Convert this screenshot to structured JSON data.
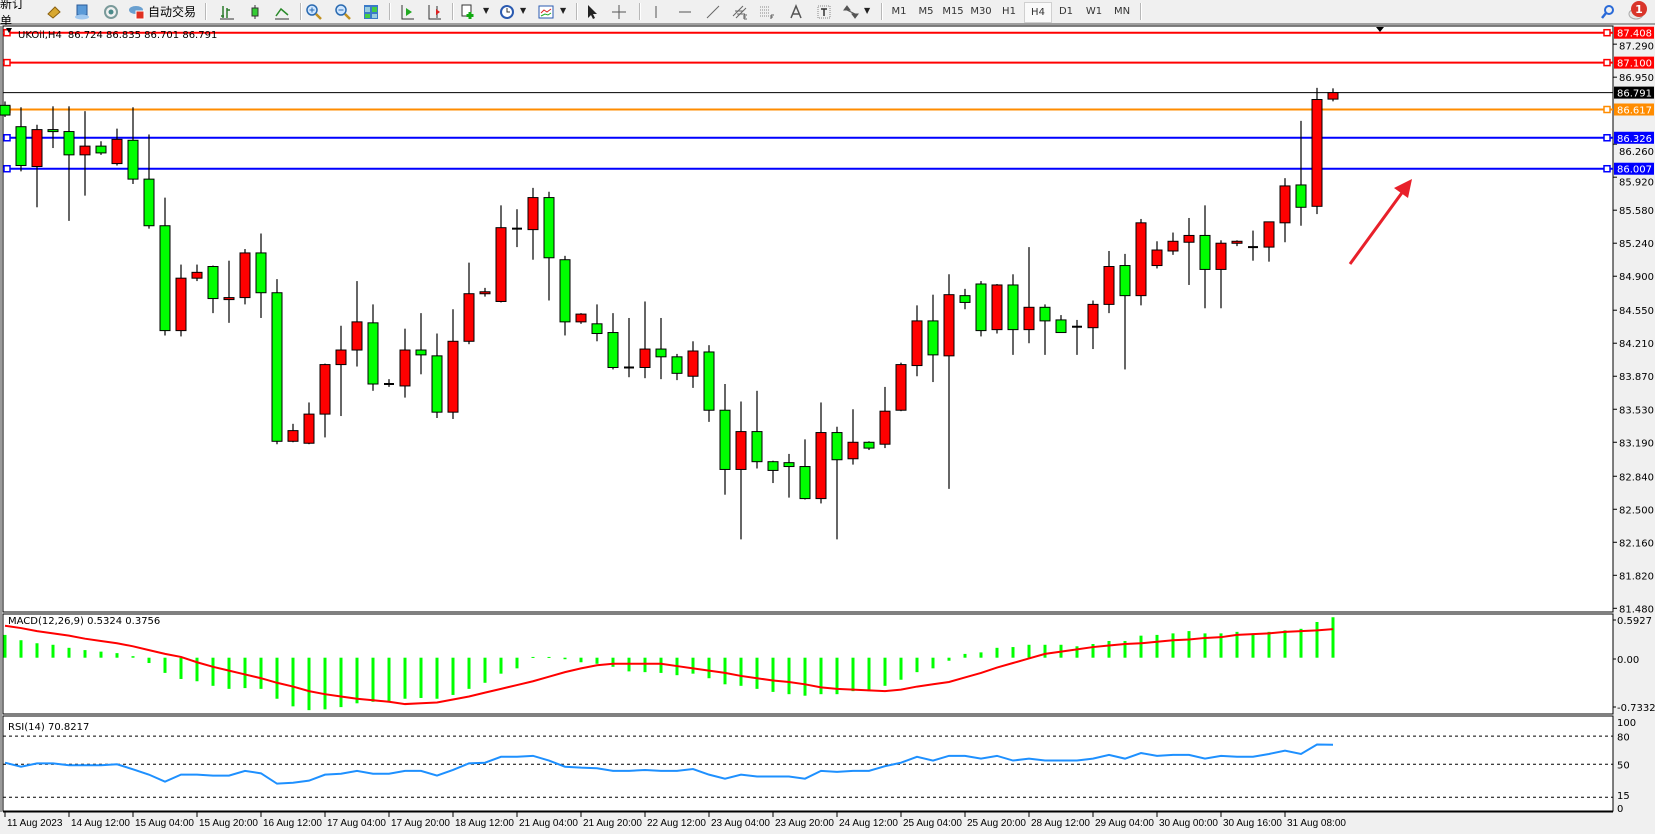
{
  "toolbar": {
    "new_order_label": "新订单",
    "auto_trading_label": "自动交易",
    "icons": [
      "market-watch-icon",
      "data-window-icon",
      "navigator-icon",
      "auto-trading-icon",
      "bar-chart-icon",
      "candlestick-icon",
      "line-chart-icon",
      "zoom-in-icon",
      "zoom-out-icon",
      "tile-windows-icon",
      "auto-scroll-icon",
      "chart-shift-icon",
      "indicators-icon",
      "periods-icon",
      "templates-icon",
      "cursor-icon",
      "crosshair-icon",
      "vertical-line-icon",
      "horizontal-line-icon",
      "trendline-icon",
      "equidistant-channel-icon",
      "fibonacci-icon",
      "text-icon",
      "text-label-icon",
      "arrows-icon",
      "search-icon",
      "notifications-icon"
    ],
    "timeframes": [
      "M1",
      "M5",
      "M15",
      "M30",
      "H1",
      "H4",
      "D1",
      "W1",
      "MN"
    ],
    "active_timeframe": "H4",
    "notification_count": "1"
  },
  "chart_header": {
    "symbol": "UKOil,H4",
    "ohlc": "86.724 86.835 86.701 86.791"
  },
  "chart_data": {
    "type": "candlestick",
    "symbol": "UKOil",
    "timeframe": "H4",
    "bull_color": "#ff0000",
    "bear_color": "#00ff00",
    "candles_ohlc": [
      [
        86.66,
        86.7,
        86.54,
        86.56
      ],
      [
        86.44,
        86.64,
        85.98,
        86.04
      ],
      [
        86.03,
        86.46,
        85.61,
        86.41
      ],
      [
        86.41,
        86.65,
        86.22,
        86.39
      ],
      [
        86.39,
        86.65,
        85.47,
        86.15
      ],
      [
        86.15,
        86.6,
        85.73,
        86.24
      ],
      [
        86.24,
        86.29,
        86.15,
        86.17
      ],
      [
        86.06,
        86.42,
        86.04,
        86.31
      ],
      [
        86.3,
        86.64,
        85.85,
        85.9
      ],
      [
        85.9,
        86.36,
        85.39,
        85.42
      ],
      [
        85.42,
        85.71,
        84.29,
        84.34
      ],
      [
        84.34,
        85.02,
        84.28,
        84.88
      ],
      [
        84.88,
        85.02,
        84.85,
        84.94
      ],
      [
        85.0,
        85.01,
        84.52,
        84.67
      ],
      [
        84.66,
        85.06,
        84.42,
        84.68
      ],
      [
        84.68,
        85.18,
        84.61,
        85.14
      ],
      [
        85.14,
        85.34,
        84.47,
        84.73
      ],
      [
        84.73,
        84.87,
        83.17,
        83.2
      ],
      [
        83.2,
        83.38,
        83.19,
        83.31
      ],
      [
        83.18,
        83.6,
        83.17,
        83.48
      ],
      [
        83.48,
        84.0,
        83.24,
        83.99
      ],
      [
        83.99,
        84.39,
        83.46,
        84.14
      ],
      [
        84.14,
        84.85,
        83.97,
        84.43
      ],
      [
        84.42,
        84.61,
        83.72,
        83.79
      ],
      [
        83.79,
        83.84,
        83.76,
        83.79
      ],
      [
        83.77,
        84.36,
        83.65,
        84.14
      ],
      [
        84.14,
        84.52,
        83.89,
        84.09
      ],
      [
        84.08,
        84.31,
        83.44,
        83.5
      ],
      [
        83.5,
        84.56,
        83.43,
        84.23
      ],
      [
        84.23,
        85.04,
        84.2,
        84.72
      ],
      [
        84.72,
        84.78,
        84.69,
        84.74
      ],
      [
        84.64,
        85.63,
        84.63,
        85.4
      ],
      [
        85.39,
        85.59,
        85.2,
        85.39
      ],
      [
        85.38,
        85.81,
        85.07,
        85.71
      ],
      [
        85.71,
        85.77,
        84.65,
        85.09
      ],
      [
        85.07,
        85.11,
        84.29,
        84.43
      ],
      [
        84.43,
        84.52,
        84.41,
        84.51
      ],
      [
        84.41,
        84.61,
        84.23,
        84.31
      ],
      [
        84.32,
        84.52,
        83.94,
        83.96
      ],
      [
        83.96,
        84.47,
        83.86,
        83.96
      ],
      [
        83.96,
        84.64,
        83.85,
        84.15
      ],
      [
        84.15,
        84.47,
        83.84,
        84.07
      ],
      [
        84.07,
        84.1,
        83.83,
        83.9
      ],
      [
        83.87,
        84.23,
        83.75,
        84.13
      ],
      [
        84.12,
        84.19,
        83.4,
        83.52
      ],
      [
        83.52,
        83.79,
        82.65,
        82.91
      ],
      [
        82.91,
        83.61,
        82.19,
        83.3
      ],
      [
        83.3,
        83.72,
        82.92,
        82.99
      ],
      [
        82.99,
        83.0,
        82.77,
        82.9
      ],
      [
        82.98,
        83.07,
        82.62,
        82.94
      ],
      [
        82.94,
        83.22,
        82.6,
        82.61
      ],
      [
        82.61,
        83.6,
        82.56,
        83.29
      ],
      [
        83.29,
        83.35,
        82.19,
        83.01
      ],
      [
        83.02,
        83.53,
        82.96,
        83.19
      ],
      [
        83.19,
        83.2,
        83.11,
        83.13
      ],
      [
        83.17,
        83.76,
        83.13,
        83.51
      ],
      [
        83.52,
        84.01,
        83.51,
        83.99
      ],
      [
        83.98,
        84.6,
        83.87,
        84.44
      ],
      [
        84.44,
        84.71,
        83.81,
        84.09
      ],
      [
        84.08,
        84.92,
        82.71,
        84.71
      ],
      [
        84.7,
        84.77,
        84.56,
        84.63
      ],
      [
        84.82,
        84.85,
        84.28,
        84.34
      ],
      [
        84.35,
        84.82,
        84.31,
        84.81
      ],
      [
        84.81,
        84.92,
        84.09,
        84.35
      ],
      [
        84.35,
        85.2,
        84.21,
        84.58
      ],
      [
        84.58,
        84.61,
        84.09,
        84.44
      ],
      [
        84.45,
        84.5,
        84.32,
        84.32
      ],
      [
        84.38,
        84.45,
        84.09,
        84.38
      ],
      [
        84.37,
        84.65,
        84.15,
        84.61
      ],
      [
        84.61,
        85.16,
        84.52,
        85.0
      ],
      [
        85.01,
        85.13,
        83.94,
        84.7
      ],
      [
        84.7,
        85.49,
        84.6,
        85.45
      ],
      [
        85.01,
        85.26,
        84.98,
        85.17
      ],
      [
        85.16,
        85.35,
        85.12,
        85.26
      ],
      [
        85.25,
        85.5,
        84.81,
        85.32
      ],
      [
        85.32,
        85.63,
        84.57,
        84.97
      ],
      [
        84.97,
        85.27,
        84.57,
        85.24
      ],
      [
        85.24,
        85.27,
        85.21,
        85.26
      ],
      [
        85.2,
        85.37,
        85.06,
        85.2
      ],
      [
        85.2,
        85.46,
        85.05,
        85.46
      ],
      [
        85.45,
        85.91,
        85.25,
        85.83
      ],
      [
        85.84,
        86.5,
        85.42,
        85.61
      ],
      [
        85.62,
        86.84,
        85.54,
        86.72
      ],
      [
        86.724,
        86.835,
        86.701,
        86.791
      ]
    ],
    "x_tick_labels": [
      "11 Aug 2023",
      "14 Aug 12:00",
      "15 Aug 04:00",
      "15 Aug 20:00",
      "16 Aug 12:00",
      "17 Aug 04:00",
      "17 Aug 20:00",
      "18 Aug 12:00",
      "21 Aug 04:00",
      "21 Aug 20:00",
      "22 Aug 12:00",
      "23 Aug 04:00",
      "23 Aug 20:00",
      "24 Aug 12:00",
      "25 Aug 04:00",
      "25 Aug 20:00",
      "28 Aug 12:00",
      "29 Aug 04:00",
      "30 Aug 00:00",
      "30 Aug 16:00",
      "31 Aug 08:00"
    ],
    "x_tick_every_n_bars": 4,
    "y_tick_labels": [
      "87.290",
      "86.950",
      "86.260",
      "85.920",
      "85.580",
      "85.240",
      "84.900",
      "84.550",
      "84.210",
      "83.870",
      "83.530",
      "83.190",
      "82.840",
      "82.500",
      "82.160",
      "81.820",
      "81.480"
    ],
    "ylim": [
      81.48,
      87.45
    ],
    "grid": false,
    "horizontal_lines": [
      {
        "price": "87.408",
        "color": "#ff0000"
      },
      {
        "price": "87.100",
        "color": "#ff0000"
      },
      {
        "price": "86.791",
        "color": "#000000",
        "kind": "bid"
      },
      {
        "price": "86.617",
        "color": "#ff8c00"
      },
      {
        "price": "86.326",
        "color": "#0000ff"
      },
      {
        "price": "86.007",
        "color": "#0000ff"
      }
    ],
    "annotation_arrow_color": "#e8202a",
    "macd": {
      "label": "MACD(12,26,9) 0.5324 0.3756",
      "axis_labels": [
        "0.5927",
        "0.00",
        "-0.7332"
      ],
      "ylim": [
        -0.7332,
        0.5927
      ],
      "histogram_color": "#00ff00",
      "signal_color": "#ff0000",
      "histogram": [
        0.3,
        0.23,
        0.19,
        0.17,
        0.13,
        0.1,
        0.08,
        0.06,
        0.02,
        -0.07,
        -0.2,
        -0.28,
        -0.31,
        -0.37,
        -0.41,
        -0.4,
        -0.41,
        -0.54,
        -0.64,
        -0.69,
        -0.68,
        -0.65,
        -0.6,
        -0.58,
        -0.58,
        -0.54,
        -0.53,
        -0.54,
        -0.49,
        -0.41,
        -0.33,
        -0.21,
        -0.14,
        0.01,
        0.01,
        -0.02,
        -0.06,
        -0.08,
        -0.12,
        -0.18,
        -0.19,
        -0.2,
        -0.23,
        -0.21,
        -0.27,
        -0.35,
        -0.37,
        -0.41,
        -0.45,
        -0.48,
        -0.5,
        -0.48,
        -0.48,
        -0.44,
        -0.44,
        -0.37,
        -0.29,
        -0.19,
        -0.14,
        -0.04,
        0.05,
        0.07,
        0.13,
        0.14,
        0.17,
        0.17,
        0.17,
        0.15,
        0.18,
        0.22,
        0.22,
        0.29,
        0.3,
        0.32,
        0.35,
        0.32,
        0.32,
        0.34,
        0.32,
        0.34,
        0.36,
        0.38,
        0.47,
        0.5324
      ],
      "signal": [
        0.42,
        0.39,
        0.35,
        0.32,
        0.29,
        0.25,
        0.22,
        0.19,
        0.15,
        0.1,
        0.05,
        0.01,
        -0.06,
        -0.12,
        -0.17,
        -0.22,
        -0.27,
        -0.33,
        -0.38,
        -0.44,
        -0.48,
        -0.51,
        -0.54,
        -0.56,
        -0.58,
        -0.61,
        -0.6,
        -0.59,
        -0.55,
        -0.51,
        -0.46,
        -0.41,
        -0.36,
        -0.31,
        -0.25,
        -0.19,
        -0.14,
        -0.1,
        -0.08,
        -0.08,
        -0.08,
        -0.08,
        -0.11,
        -0.14,
        -0.17,
        -0.2,
        -0.24,
        -0.27,
        -0.3,
        -0.32,
        -0.35,
        -0.39,
        -0.41,
        -0.42,
        -0.43,
        -0.44,
        -0.42,
        -0.38,
        -0.35,
        -0.32,
        -0.26,
        -0.2,
        -0.13,
        -0.07,
        -0.01,
        0.05,
        0.08,
        0.11,
        0.14,
        0.16,
        0.18,
        0.19,
        0.21,
        0.23,
        0.24,
        0.26,
        0.27,
        0.3,
        0.31,
        0.32,
        0.34,
        0.35,
        0.36,
        0.3756
      ]
    },
    "rsi": {
      "label": "RSI(14) 70.8217",
      "axis_labels": [
        "100",
        "80",
        "50",
        "15",
        "0"
      ],
      "levels": [
        80,
        50,
        15
      ],
      "ylim": [
        0,
        100
      ],
      "color": "#1e90ff",
      "values": [
        51.7,
        47.4,
        51,
        51,
        49,
        49,
        49,
        50,
        44.7,
        39,
        31.5,
        39,
        39,
        38,
        38,
        43,
        40.4,
        29.4,
        30.4,
        32.6,
        39,
        40,
        43,
        40,
        40,
        43,
        43,
        38,
        44,
        51,
        51.7,
        58,
        58,
        59,
        54,
        47.4,
        46.4,
        45.8,
        43,
        43,
        44,
        43,
        43,
        45,
        39,
        34.7,
        39,
        37,
        37,
        37,
        34.7,
        43,
        42,
        43,
        43,
        48,
        51.7,
        58,
        54,
        59,
        59,
        56,
        59,
        54,
        56,
        54,
        54,
        54,
        56,
        60,
        56,
        62,
        59,
        60,
        60,
        56,
        59,
        58,
        58,
        61,
        64.5,
        61,
        71,
        70.8217
      ]
    }
  }
}
